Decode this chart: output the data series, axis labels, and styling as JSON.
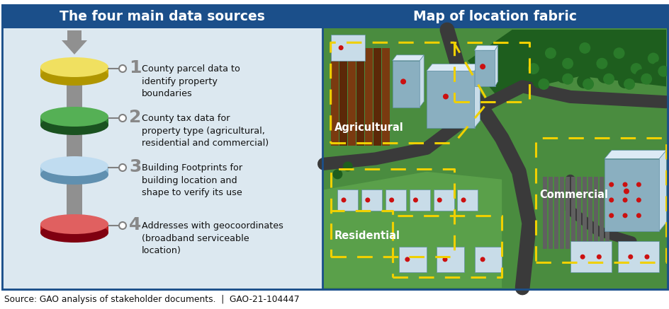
{
  "title_left": "The four main data sources",
  "title_right": "Map of location fabric",
  "title_bg": "#1b4f8a",
  "title_text_color": "#ffffff",
  "panel_bg_left": "#dce8f0",
  "border_color": "#1b4f8a",
  "source_text": "Source: GAO analysis of stakeholder documents.  |  GAO-21-104447",
  "disk_colors": [
    {
      "top": "#f0e060",
      "mid": "#d4b800",
      "bot": "#b09600",
      "side": "#c8a800"
    },
    {
      "top": "#55b055",
      "mid": "#2d7d32",
      "bot": "#1a5220",
      "side": "#2d7d32"
    },
    {
      "top": "#c0dcf0",
      "mid": "#90bcd8",
      "bot": "#6090b0",
      "side": "#90bcd8"
    },
    {
      "top": "#e06060",
      "mid": "#c02020",
      "bot": "#800010",
      "side": "#c02020"
    }
  ],
  "item_texts": [
    "County parcel data to\nidentify property\nboundaries",
    "County tax data for\nproperty type (agricultural,\nresidential and commercial)",
    "Building Footprints for\nbuilding location and\nshape to verify its use",
    "Addresses with geocoordinates\n(broadband serviceable\nlocation)"
  ],
  "numbers": [
    "1",
    "2",
    "3",
    "4"
  ],
  "map_green_bg": "#4a8c3f",
  "map_green_light": "#5aa04a",
  "map_green_dark": "#2d6e25",
  "road_color": "#3a3a3a",
  "field_colors": [
    "#7a3a10",
    "#5c2808"
  ],
  "building_roof": "#c8dce8",
  "building_side": "#8aafc0",
  "building_top": "#dceaf5",
  "dot_color": "#cc1010",
  "dash_color": "#f0d000",
  "tree_dark": "#1e5e1e",
  "tree_mid": "#2a7a2a",
  "parking_color": "#606060"
}
